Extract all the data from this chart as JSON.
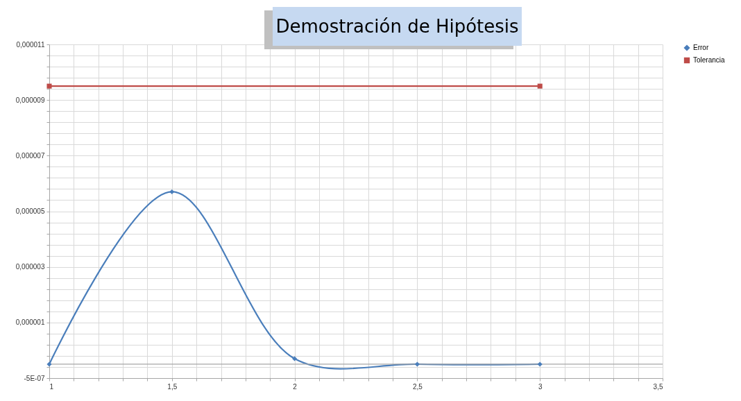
{
  "chart_data": {
    "type": "line",
    "title": "Demostración de Hipótesis",
    "xlim": [
      1,
      3.5
    ],
    "xticks": [
      1,
      {
        "value": 1.1,
        "label": null
      },
      {
        "value": 1.2,
        "label": null
      },
      {
        "value": 1.3,
        "label": null
      },
      {
        "value": 1.4,
        "label": null
      },
      {
        "value": 1.5,
        "label": "1,5"
      },
      {
        "value": 1.6,
        "label": null
      },
      {
        "value": 1.7,
        "label": null
      },
      {
        "value": 1.8,
        "label": null
      },
      {
        "value": 1.9,
        "label": null
      },
      2,
      {
        "value": 2.1,
        "label": null
      },
      {
        "value": 2.2,
        "label": null
      },
      {
        "value": 2.3,
        "label": null
      },
      {
        "value": 2.4,
        "label": null
      },
      {
        "value": 2.5,
        "label": "2,5"
      },
      {
        "value": 2.6,
        "label": null
      },
      {
        "value": 2.7,
        "label": null
      },
      {
        "value": 2.8,
        "label": null
      },
      {
        "value": 2.9,
        "label": null
      },
      3,
      {
        "value": 3.1,
        "label": null
      },
      {
        "value": 3.2,
        "label": null
      },
      {
        "value": 3.3,
        "label": null
      },
      {
        "value": 3.4,
        "label": null
      },
      {
        "value": 3.5,
        "label": "3,5"
      }
    ],
    "ylim": [
      -5e-07,
      1.15e-05
    ],
    "yticks": [
      {
        "value": -5e-07,
        "label": "-5E-07"
      },
      {
        "value": -1e-07,
        "label": null
      },
      {
        "value": 3e-07,
        "label": null
      },
      {
        "value": 7e-07,
        "label": null
      },
      {
        "value": 1.1e-06,
        "label": null
      },
      {
        "value": 1.5e-06,
        "label": "0,000001"
      },
      {
        "value": 1.9e-06,
        "label": null
      },
      {
        "value": 2.3e-06,
        "label": null
      },
      {
        "value": 2.7e-06,
        "label": null
      },
      {
        "value": 3.1e-06,
        "label": null
      },
      {
        "value": 3.5e-06,
        "label": "0,000003"
      },
      {
        "value": 3.9e-06,
        "label": null
      },
      {
        "value": 4.3e-06,
        "label": null
      },
      {
        "value": 4.7e-06,
        "label": null
      },
      {
        "value": 5.1e-06,
        "label": null
      },
      {
        "value": 5.5e-06,
        "label": "0,000005"
      },
      {
        "value": 5.9e-06,
        "label": null
      },
      {
        "value": 6.3e-06,
        "label": null
      },
      {
        "value": 6.7e-06,
        "label": null
      },
      {
        "value": 7.1e-06,
        "label": null
      },
      {
        "value": 7.5e-06,
        "label": "0,000007"
      },
      {
        "value": 7.9e-06,
        "label": null
      },
      {
        "value": 8.3e-06,
        "label": null
      },
      {
        "value": 8.7e-06,
        "label": null
      },
      {
        "value": 9.1e-06,
        "label": null
      },
      {
        "value": 9.5e-06,
        "label": "0,000009"
      },
      {
        "value": 9.9e-06,
        "label": null
      },
      {
        "value": 1.03e-05,
        "label": null
      },
      {
        "value": 1.07e-05,
        "label": null
      },
      {
        "value": 1.11e-05,
        "label": null
      },
      {
        "value": 1.15e-05,
        "label": "0,000011"
      }
    ],
    "grid": true,
    "legend": "right",
    "ref_lines": [
      {
        "axis": "y",
        "value": 0,
        "color": "#a6a6a6"
      }
    ],
    "series": [
      {
        "name": "Error",
        "color": "#4a7ebb",
        "marker": "diamond",
        "x": [
          1,
          1.5,
          2,
          2.5,
          3
        ],
        "values": [
          0,
          6.2e-06,
          2e-07,
          0,
          0
        ]
      },
      {
        "name": "Tolerancia",
        "color": "#be4b48",
        "marker": "square",
        "x": [
          1,
          3
        ],
        "values": [
          1e-05,
          1e-05
        ]
      }
    ]
  }
}
